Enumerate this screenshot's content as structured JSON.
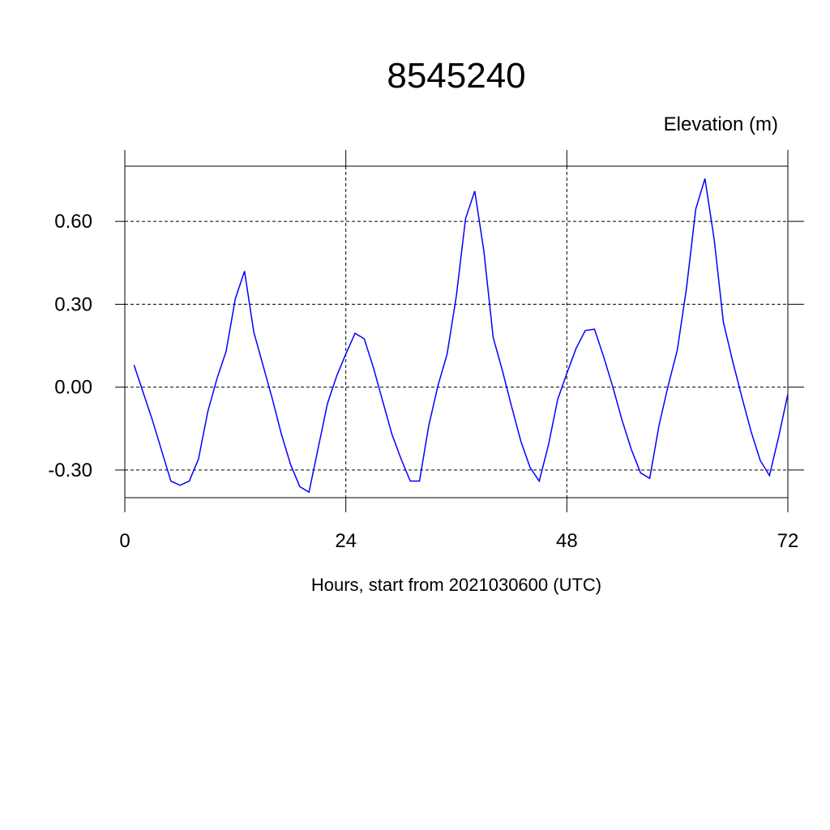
{
  "chart_data": {
    "type": "line",
    "title": "8545240",
    "ylabel": "Elevation (m)",
    "xlabel": "Hours, start from 2021030600 (UTC)",
    "x": [
      1,
      2,
      3,
      4,
      5,
      6,
      7,
      8,
      9,
      10,
      11,
      12,
      13,
      14,
      15,
      16,
      17,
      18,
      19,
      20,
      21,
      22,
      23,
      24,
      25,
      26,
      27,
      28,
      29,
      30,
      31,
      32,
      33,
      34,
      35,
      36,
      37,
      38,
      39,
      40,
      41,
      42,
      43,
      44,
      45,
      46,
      47,
      48,
      49,
      50,
      51,
      52,
      53,
      54,
      55,
      56,
      57,
      58,
      59,
      60,
      61,
      62,
      63,
      64,
      65,
      66,
      67,
      68,
      69,
      70,
      71,
      72
    ],
    "series": [
      {
        "name": "Elevation",
        "color": "#0000ff",
        "values": [
          0.08,
          -0.02,
          -0.12,
          -0.23,
          -0.34,
          -0.355,
          -0.34,
          -0.26,
          -0.09,
          0.03,
          0.13,
          0.32,
          0.42,
          0.2,
          0.08,
          -0.04,
          -0.17,
          -0.28,
          -0.36,
          -0.38,
          -0.22,
          -0.06,
          0.04,
          0.12,
          0.195,
          0.175,
          0.07,
          -0.05,
          -0.17,
          -0.26,
          -0.34,
          -0.34,
          -0.14,
          0.005,
          0.12,
          0.33,
          0.61,
          0.71,
          0.49,
          0.18,
          0.06,
          -0.07,
          -0.195,
          -0.29,
          -0.34,
          -0.21,
          -0.045,
          0.05,
          0.14,
          0.205,
          0.21,
          0.11,
          0.0,
          -0.12,
          -0.225,
          -0.31,
          -0.33,
          -0.14,
          0.005,
          0.135,
          0.36,
          0.645,
          0.755,
          0.535,
          0.235,
          0.095,
          -0.035,
          -0.16,
          -0.265,
          -0.32,
          -0.18,
          -0.025
        ]
      }
    ],
    "xlim": [
      0,
      72
    ],
    "xticks": [
      0,
      24,
      48,
      72
    ],
    "ylim": [
      -0.4,
      0.8
    ],
    "yticks": [
      {
        "value": -0.3,
        "label": "-0.30"
      },
      {
        "value": 0,
        "label": "0.00"
      },
      {
        "value": 0.3,
        "label": "0.30"
      },
      {
        "value": 0.6,
        "label": "0.60"
      }
    ],
    "grid": true
  }
}
